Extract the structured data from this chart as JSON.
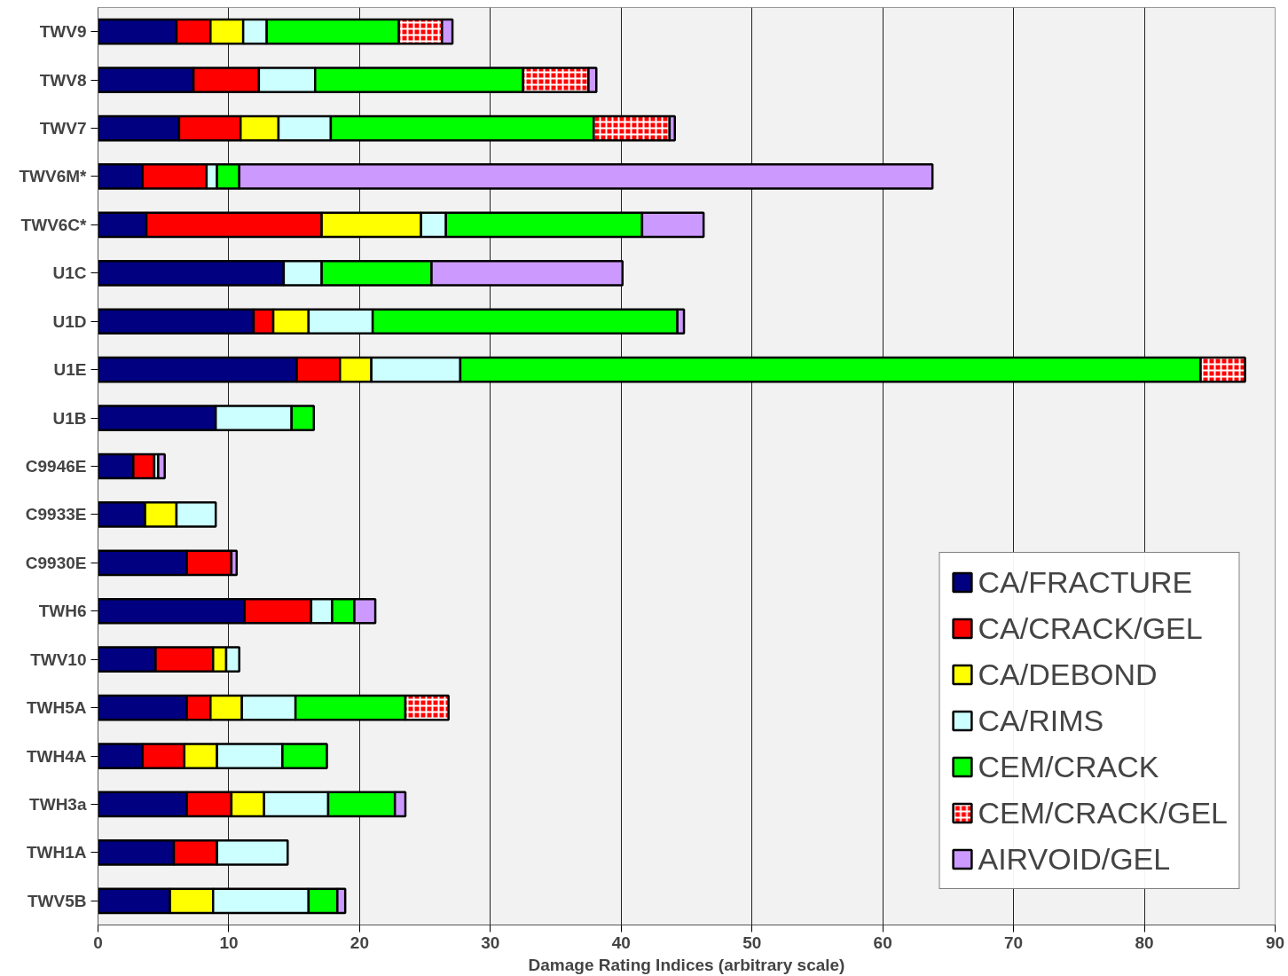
{
  "chart_data": {
    "type": "bar",
    "orientation": "horizontal",
    "stacked": true,
    "xlabel": "Damage Rating Indices (arbitrary scale)",
    "categories": [
      "TWV9",
      "TWV8",
      "TWV7",
      "TWV6M*",
      "TWV6C*",
      "U1C",
      "U1D",
      "U1E",
      "U1B",
      "C9946E",
      "C9933E",
      "C9930E",
      "TWH6",
      "TWV10",
      "TWH5A",
      "TWH4A",
      "TWH3a",
      "TWH1A",
      "TWV5B"
    ],
    "series": [
      {
        "name": "CA/FRACTURE",
        "color": "#000080",
        "values": [
          6.0,
          7.3,
          6.2,
          3.4,
          3.7,
          14.2,
          11.9,
          15.2,
          9.0,
          2.7,
          3.6,
          6.8,
          11.2,
          4.4,
          6.8,
          3.4,
          6.8,
          5.8,
          5.5
        ]
      },
      {
        "name": "CA/CRACK/GEL",
        "color": "#ff0000",
        "values": [
          2.6,
          5.0,
          4.7,
          4.9,
          13.4,
          null,
          1.5,
          3.3,
          null,
          1.6,
          null,
          3.4,
          5.1,
          4.4,
          1.8,
          3.2,
          3.4,
          3.3,
          null
        ]
      },
      {
        "name": "CA/DEBOND",
        "color": "#ffff00",
        "values": [
          2.5,
          null,
          2.9,
          null,
          7.6,
          null,
          2.7,
          2.4,
          null,
          null,
          2.4,
          null,
          null,
          1.0,
          2.4,
          2.5,
          2.5,
          null,
          3.3
        ]
      },
      {
        "name": "CA/RIMS",
        "color": "#ccffff",
        "values": [
          1.8,
          4.3,
          4.0,
          0.8,
          1.9,
          2.9,
          4.9,
          6.8,
          5.8,
          0.3,
          3.0,
          null,
          1.6,
          1.0,
          4.1,
          5.0,
          4.9,
          5.4,
          7.3
        ]
      },
      {
        "name": "CEM/CRACK",
        "color": "#00ff00",
        "values": [
          10.1,
          15.9,
          20.1,
          1.7,
          15.0,
          8.4,
          23.3,
          56.6,
          1.7,
          null,
          null,
          null,
          1.7,
          null,
          8.4,
          3.4,
          5.1,
          null,
          2.2
        ]
      },
      {
        "name": "CEM/CRACK/GEL",
        "color": "#ff0000",
        "values": [
          3.3,
          5.0,
          5.8,
          null,
          null,
          null,
          null,
          3.4,
          null,
          null,
          null,
          null,
          null,
          null,
          3.3,
          null,
          null,
          null,
          null
        ]
      },
      {
        "name": "AIRVOID/GEL",
        "color": "#cc99ff",
        "values": [
          0.8,
          0.6,
          0.4,
          53.0,
          4.7,
          14.6,
          0.5,
          null,
          null,
          0.5,
          null,
          0.4,
          1.6,
          null,
          null,
          null,
          0.8,
          null,
          0.6
        ]
      }
    ],
    "xlim": [
      0,
      90
    ],
    "xticks": [
      0,
      10,
      20,
      30,
      40,
      50,
      60,
      70,
      80,
      90
    ],
    "grid": "x",
    "legend": "bottom right"
  }
}
